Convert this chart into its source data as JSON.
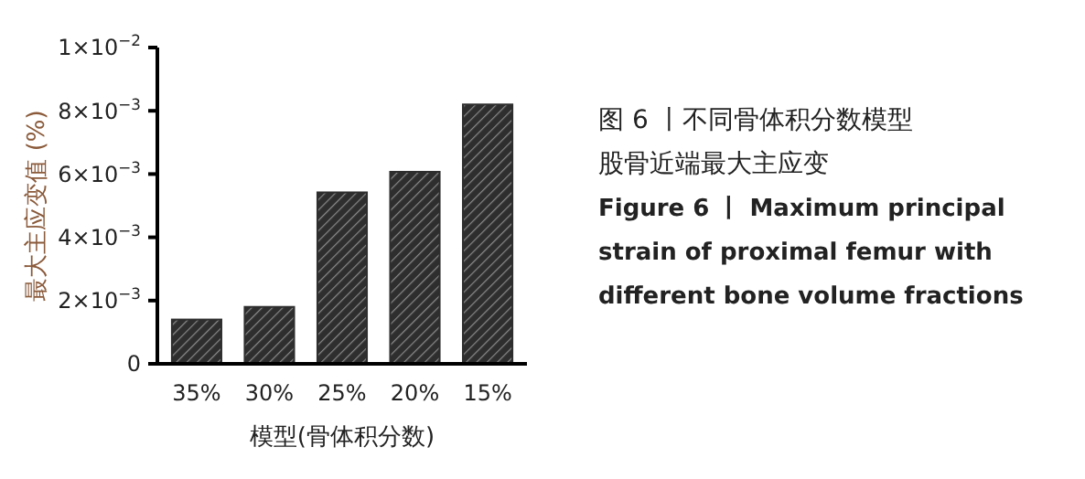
{
  "chart_data": {
    "type": "bar",
    "title": "图 6 丨不同骨体积分数模型股骨近端最大主应变",
    "subtitle": "Figure 6  丨  Maximum principal strain of proximal femur with different bone volume fractions",
    "xlabel": "模型(骨体积分数)",
    "ylabel": "最大主应变值 (%)",
    "categories": [
      "35%",
      "30%",
      "25%",
      "20%",
      "15%"
    ],
    "values": [
      0.0014,
      0.0018,
      0.00542,
      0.00607,
      0.0082
    ],
    "color": "#2e2e2e",
    "ylim": [
      0,
      0.01
    ],
    "yticks": [
      {
        "value": 0,
        "label": "0"
      },
      {
        "value": 0.002,
        "label": "2×10$^{−3}$"
      },
      {
        "value": 0.004,
        "label": "4×10$^{−3}$"
      },
      {
        "value": 0.006,
        "label": "6×10$^{−3}$"
      },
      {
        "value": 0.008,
        "label": "8×10$^{−3}$"
      },
      {
        "value": 0.01,
        "label": "1×10$^{−2}$"
      }
    ],
    "grid": false
  }
}
